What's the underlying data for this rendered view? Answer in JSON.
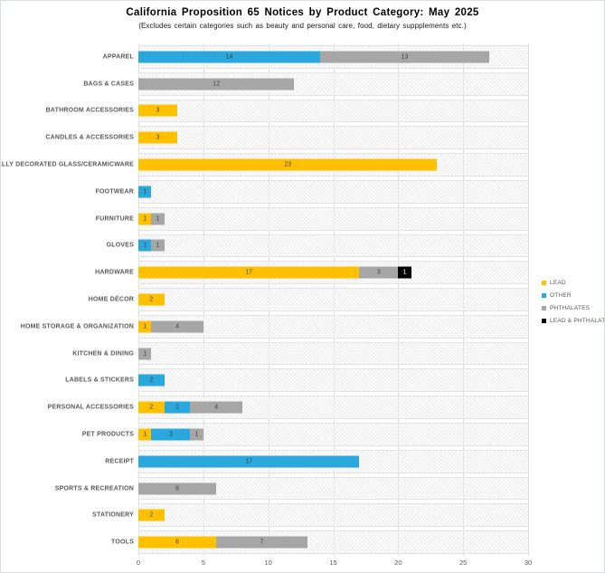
{
  "chart_data": {
    "type": "bar",
    "orientation": "horizontal",
    "stacked": true,
    "title": "California Proposition 65 Notices by Product Category: May 2025",
    "subtitle": "(Excludes certain categories such as beauty and personal care, food, dietary suppplements etc.)",
    "xlabel": "",
    "ylabel": "",
    "x_ticks": [
      0,
      5,
      10,
      15,
      20,
      25,
      30
    ],
    "x_max": 30,
    "grid": true,
    "legend_position": "right",
    "legend": [
      "LEAD",
      "OTHER",
      "PHTHALATES",
      "LEAD & PHTHALATES"
    ],
    "series_colors": {
      "LEAD": "#FFC000",
      "OTHER": "#2AA7DC",
      "PHTHALATES": "#A6A6A6",
      "LEAD & PHTHALATES": "#000000"
    },
    "value_label_color": "#3f3f3f",
    "value_label_color_on_dark": "#ffffff",
    "categories": [
      {
        "label": "APPAREL",
        "segments": [
          {
            "series": "OTHER",
            "value": 14
          },
          {
            "series": "PHTHALATES",
            "value": 13
          }
        ]
      },
      {
        "label": "BAGS & CASES",
        "segments": [
          {
            "series": "PHTHALATES",
            "value": 12
          }
        ]
      },
      {
        "label": "BATHROOM ACCESSORIES",
        "segments": [
          {
            "series": "LEAD",
            "value": 3
          }
        ]
      },
      {
        "label": "CANDLES & ACCESSORIES",
        "segments": [
          {
            "series": "LEAD",
            "value": 3
          }
        ]
      },
      {
        "label": "EXTERNALLY DECORATED GLASS/CERAMICWARE",
        "segments": [
          {
            "series": "LEAD",
            "value": 23
          }
        ]
      },
      {
        "label": "FOOTWEAR",
        "segments": [
          {
            "series": "OTHER",
            "value": 1
          }
        ]
      },
      {
        "label": "FURNITURE",
        "segments": [
          {
            "series": "LEAD",
            "value": 1
          },
          {
            "series": "PHTHALATES",
            "value": 1
          }
        ]
      },
      {
        "label": "GLOVES",
        "segments": [
          {
            "series": "OTHER",
            "value": 1
          },
          {
            "series": "PHTHALATES",
            "value": 1
          }
        ]
      },
      {
        "label": "HARDWARE",
        "segments": [
          {
            "series": "LEAD",
            "value": 17
          },
          {
            "series": "PHTHALATES",
            "value": 3
          },
          {
            "series": "LEAD & PHTHALATES",
            "value": 1
          }
        ]
      },
      {
        "label": "HOME DÉCOR",
        "segments": [
          {
            "series": "LEAD",
            "value": 2
          }
        ]
      },
      {
        "label": "HOME STORAGE & ORGANIZATION",
        "segments": [
          {
            "series": "LEAD",
            "value": 1
          },
          {
            "series": "PHTHALATES",
            "value": 4
          }
        ]
      },
      {
        "label": "KITCHEN & DINING",
        "segments": [
          {
            "series": "PHTHALATES",
            "value": 1
          }
        ]
      },
      {
        "label": "LABELS & STICKERS",
        "segments": [
          {
            "series": "OTHER",
            "value": 2
          }
        ]
      },
      {
        "label": "PERSONAL ACCESSORIES",
        "segments": [
          {
            "series": "LEAD",
            "value": 2
          },
          {
            "series": "OTHER",
            "value": 2
          },
          {
            "series": "PHTHALATES",
            "value": 4
          }
        ]
      },
      {
        "label": "PET PRODUCTS",
        "segments": [
          {
            "series": "LEAD",
            "value": 1
          },
          {
            "series": "OTHER",
            "value": 3
          },
          {
            "series": "PHTHALATES",
            "value": 1
          }
        ]
      },
      {
        "label": "RECEIPT",
        "segments": [
          {
            "series": "OTHER",
            "value": 17
          }
        ]
      },
      {
        "label": "SPORTS & RECREATION",
        "segments": [
          {
            "series": "PHTHALATES",
            "value": 6
          }
        ]
      },
      {
        "label": "STATIONERY",
        "segments": [
          {
            "series": "LEAD",
            "value": 2
          }
        ]
      },
      {
        "label": "TOOLS",
        "segments": [
          {
            "series": "LEAD",
            "value": 6
          },
          {
            "series": "PHTHALATES",
            "value": 7
          }
        ]
      }
    ]
  }
}
